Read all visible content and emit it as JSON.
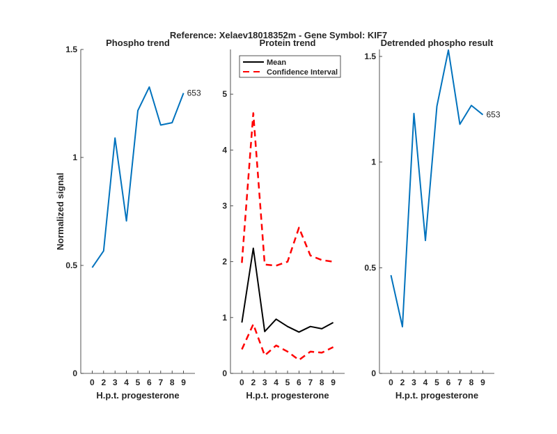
{
  "figure_title": "Reference:  Xelaev18018352m - Gene Symbol:  KIF7",
  "chart_data": [
    {
      "type": "line",
      "title": "Phospho trend",
      "xlabel": "H.p.t. progesterone",
      "ylabel": "Normalized signal",
      "categories": [
        "0",
        "2",
        "3",
        "4",
        "5",
        "6",
        "7",
        "8",
        "9"
      ],
      "ylim": [
        0,
        1.5
      ],
      "yticks": [
        0,
        0.5,
        1,
        1.5
      ],
      "ytick_labels": [
        "0",
        "0.5",
        "1",
        "1.5"
      ],
      "grid": false,
      "series": [
        {
          "name": "653",
          "color": "#0072bd",
          "style": "solid",
          "values": [
            0.49,
            0.567,
            1.09,
            0.706,
            1.217,
            1.326,
            1.15,
            1.161,
            1.298
          ]
        }
      ],
      "end_label": "653"
    },
    {
      "type": "line",
      "title": "Protein trend",
      "xlabel": "H.p.t. progesterone",
      "ylabel": "",
      "categories": [
        "0",
        "2",
        "3",
        "4",
        "5",
        "6",
        "7",
        "8",
        "9"
      ],
      "ylim": [
        0,
        5.8
      ],
      "yticks": [
        0,
        1,
        2,
        3,
        4,
        5
      ],
      "ytick_labels": [
        "0",
        "1",
        "2",
        "3",
        "4",
        "5"
      ],
      "grid": false,
      "legend": {
        "placement": "top",
        "entries": [
          "Mean",
          "Confidence Interval"
        ]
      },
      "series": [
        {
          "name": "Mean",
          "color": "#000000",
          "style": "solid",
          "values": [
            0.91,
            2.24,
            0.75,
            0.97,
            0.84,
            0.74,
            0.84,
            0.8,
            0.91
          ]
        },
        {
          "name": "Confidence Interval",
          "color": "#ff0000",
          "style": "dashed",
          "values": [
            1.98,
            4.66,
            1.95,
            1.93,
            2.0,
            2.61,
            2.11,
            2.03,
            2.0
          ]
        },
        {
          "name": "Confidence Interval (lower)",
          "color": "#ff0000",
          "style": "dashed",
          "values": [
            0.43,
            0.88,
            0.32,
            0.5,
            0.39,
            0.24,
            0.39,
            0.37,
            0.47
          ]
        }
      ]
    },
    {
      "type": "line",
      "title": "Detrended phospho result",
      "xlabel": "H.p.t. progesterone",
      "ylabel": "",
      "categories": [
        "0",
        "2",
        "3",
        "4",
        "5",
        "6",
        "7",
        "8",
        "9"
      ],
      "ylim": [
        0,
        1.533
      ],
      "yticks": [
        0,
        0.5,
        1,
        1.5
      ],
      "ytick_labels": [
        "0",
        "0.5",
        "1",
        "1.5"
      ],
      "grid": false,
      "series": [
        {
          "name": "653",
          "color": "#0072bd",
          "style": "solid",
          "values": [
            0.465,
            0.221,
            1.23,
            0.629,
            1.264,
            1.53,
            1.179,
            1.268,
            1.224
          ]
        }
      ],
      "end_label": "653"
    }
  ]
}
